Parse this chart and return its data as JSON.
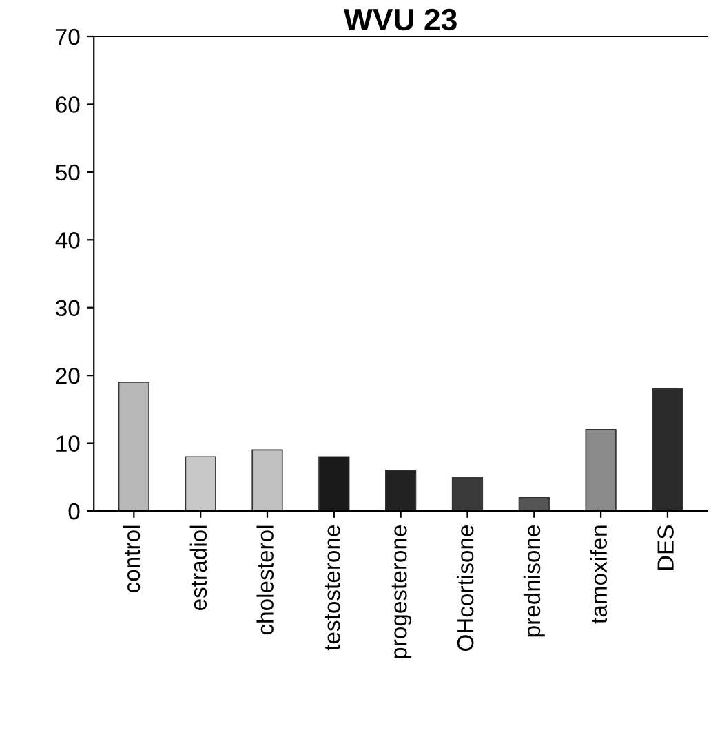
{
  "chart_data": {
    "type": "bar",
    "title": "WVU 23",
    "categories": [
      "control",
      "estradiol",
      "cholesterol",
      "testosterone",
      "progesterone",
      "OHcortisone",
      "prednisone",
      "tamoxifen",
      "DES"
    ],
    "values": [
      19,
      8,
      9,
      8,
      6,
      5,
      2,
      12,
      18
    ],
    "colors": [
      "#b8b8b8",
      "#c8c8c8",
      "#c0c0c0",
      "#1a1a1a",
      "#222222",
      "#3a3a3a",
      "#555555",
      "#8a8a8a",
      "#2a2a2a"
    ],
    "ylim": [
      0,
      70
    ],
    "yticks": [
      0,
      10,
      20,
      30,
      40,
      50,
      60,
      70
    ],
    "grid": false
  }
}
